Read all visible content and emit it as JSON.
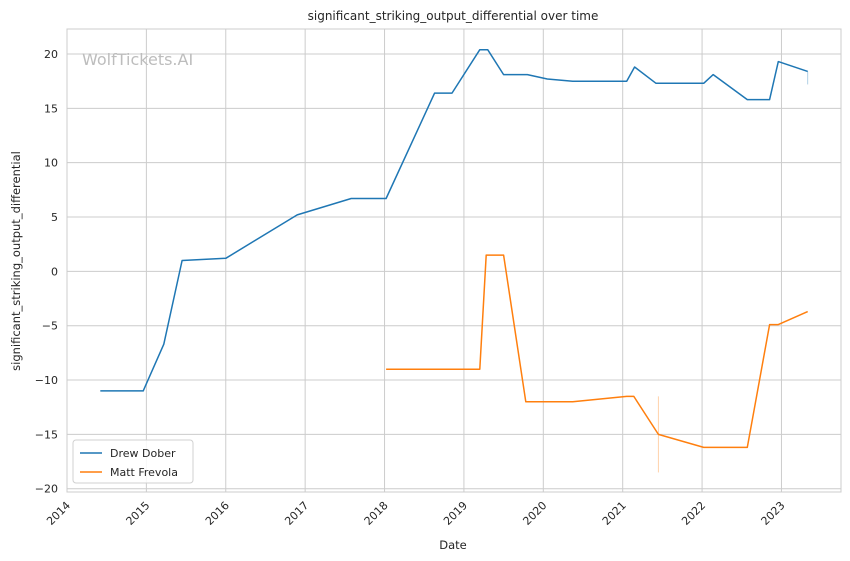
{
  "chart_data": {
    "type": "line",
    "title": "significant_striking_output_differential over time",
    "xlabel": "Date",
    "ylabel": "significant_striking_output_differential",
    "watermark": "WolfTickets.AI",
    "xlim": [
      2014.0,
      2023.75
    ],
    "ylim": [
      -20.3,
      22.3
    ],
    "x_ticks": [
      2014,
      2015,
      2016,
      2017,
      2018,
      2019,
      2020,
      2021,
      2022,
      2023
    ],
    "x_tick_labels": [
      "2014",
      "2015",
      "2016",
      "2017",
      "2018",
      "2019",
      "2020",
      "2021",
      "2022",
      "2023"
    ],
    "y_ticks": [
      -20,
      -15,
      -10,
      -5,
      0,
      5,
      10,
      15,
      20
    ],
    "y_tick_labels": [
      "−20",
      "−15",
      "−10",
      "−5",
      "0",
      "5",
      "10",
      "15",
      "20"
    ],
    "grid": true,
    "legend_position": "lower-left",
    "series": [
      {
        "name": "Drew Dober",
        "color": "#1f77b4",
        "x": [
          2014.42,
          2014.96,
          2015.22,
          2015.45,
          2016.0,
          2016.9,
          2017.58,
          2018.02,
          2018.63,
          2018.85,
          2019.2,
          2019.3,
          2019.5,
          2019.8,
          2020.05,
          2020.37,
          2021.05,
          2021.15,
          2021.42,
          2022.02,
          2022.14,
          2022.57,
          2022.85,
          2022.96,
          2023.33
        ],
        "values": [
          -11.0,
          -11.0,
          -6.7,
          1.0,
          1.2,
          5.2,
          6.7,
          6.7,
          16.4,
          16.4,
          20.4,
          20.4,
          18.1,
          18.1,
          17.7,
          17.5,
          17.5,
          18.8,
          17.3,
          17.3,
          18.1,
          15.8,
          15.8,
          19.3,
          18.4
        ]
      },
      {
        "name": "Matt Frevola",
        "color": "#ff7f0e",
        "x": [
          2018.02,
          2019.2,
          2019.28,
          2019.5,
          2019.78,
          2020.37,
          2021.05,
          2021.14,
          2021.45,
          2022.02,
          2022.57,
          2022.85,
          2022.96,
          2023.33
        ],
        "values": [
          -9.0,
          -9.0,
          1.5,
          1.5,
          -12.0,
          -12.0,
          -11.5,
          -11.5,
          -15.0,
          -16.2,
          -16.2,
          -4.9,
          -4.9,
          -3.7
        ]
      }
    ],
    "error_bars": [
      {
        "series": "Matt Frevola",
        "x": 2021.45,
        "low": -18.5,
        "high": -11.5
      },
      {
        "series": "Drew Dober",
        "x": 2023.33,
        "low": 17.2,
        "high": 18.4
      }
    ]
  }
}
